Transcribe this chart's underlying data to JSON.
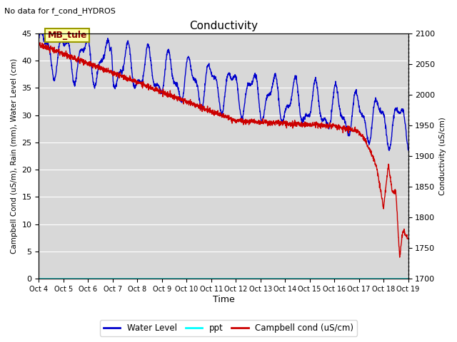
{
  "title": "Conductivity",
  "top_left_text": "No data for f_cond_HYDROS",
  "xlabel": "Time",
  "ylabel_left": "Campbell Cond (uS/m), Rain (mm), Water Level (cm)",
  "ylabel_right": "Conductivity (uS/cm)",
  "xlim": [
    0,
    15
  ],
  "ylim_left": [
    0,
    45
  ],
  "ylim_right": [
    1700,
    2100
  ],
  "x_tick_labels": [
    "Oct 4",
    "Oct 5",
    "Oct 6",
    "Oct 7",
    "Oct 8",
    "Oct 9",
    "Oct 10",
    "Oct 11",
    "Oct 12",
    "Oct 13",
    "Oct 14",
    "Oct 15",
    "Oct 16",
    "Oct 17",
    "Oct 18",
    "Oct 19"
  ],
  "annotation_box": "MB_tule",
  "plot_bg_color": "#d8d8d8",
  "grid_color": "white",
  "water_level_color": "#0000cc",
  "campbell_color": "#cc0000",
  "ppt_color": "cyan"
}
